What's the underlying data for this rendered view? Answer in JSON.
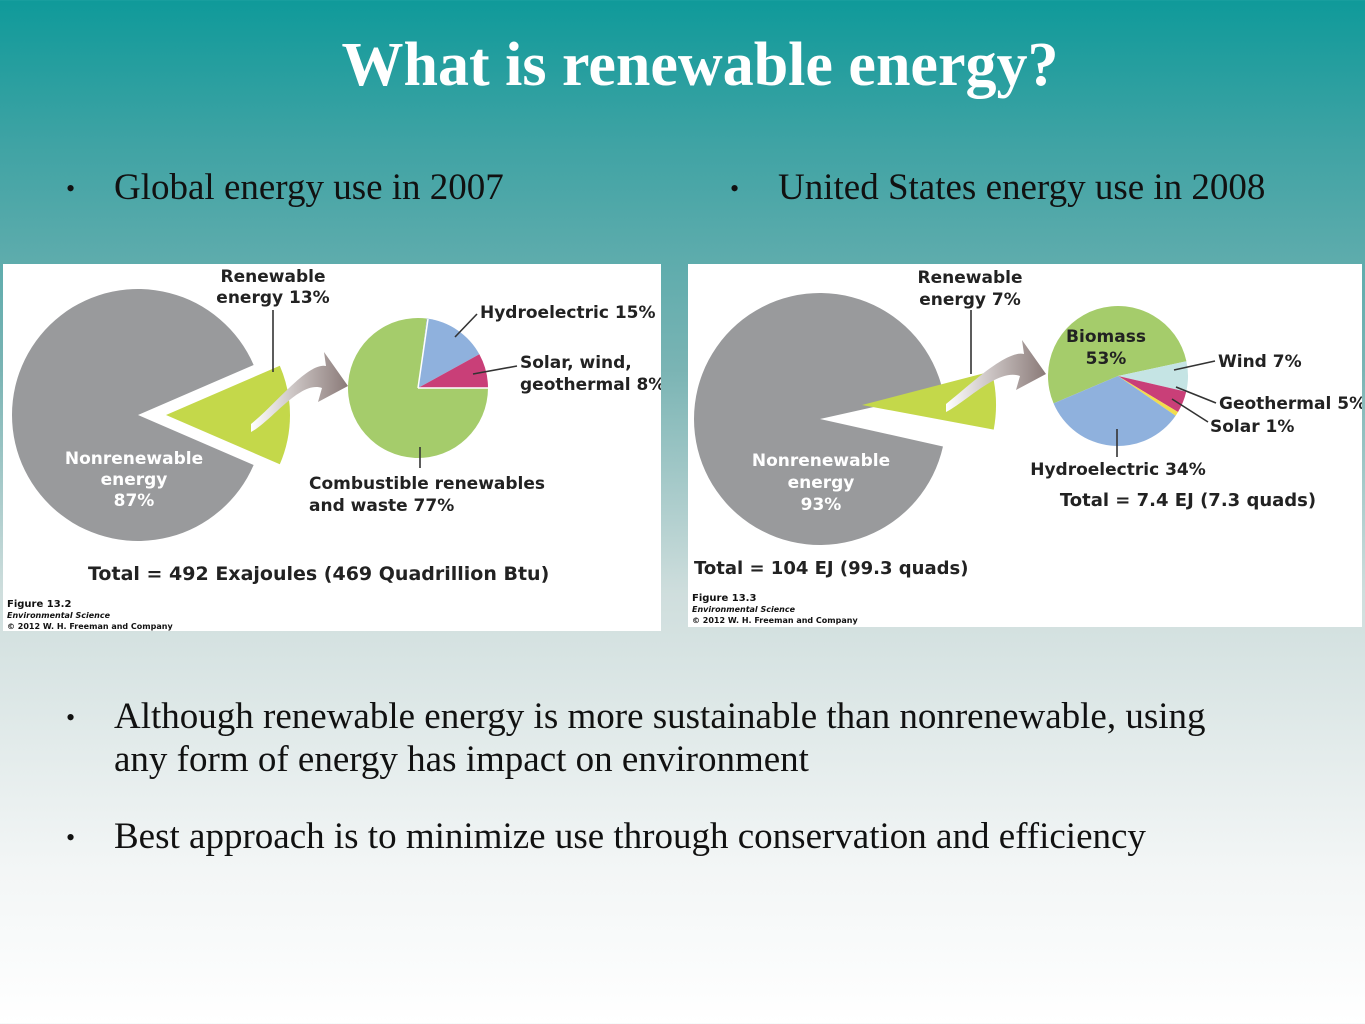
{
  "slide": {
    "title": "What is renewable energy?",
    "bullets_top": [
      "Global energy use in 2007",
      "United States energy use in 2008"
    ],
    "bullets_bottom": [
      "Although renewable energy is more sustainable than nonrenewable, using",
      "any form of energy has impact on environment",
      "Best approach is to minimize use through conservation and efficiency"
    ]
  },
  "colors": {
    "nonrenewable": "#999a9c",
    "renewable": "#c4d84a",
    "combustible": "#a5cc6b",
    "hydro": "#8fb1dd",
    "solar_wind_geo": "#c93f78",
    "wind": "#c5e4e4",
    "solar": "#f2dd4c"
  },
  "chart_data": [
    {
      "type": "pie",
      "figure": "Figure 13.2",
      "book": "Environmental Science",
      "copyright": "© 2012 W. H. Freeman and Company",
      "total": "Total = 492 Exajoules (469 Quadrillion Btu)",
      "main": {
        "slices": [
          {
            "label": "Nonrenewable energy 87%",
            "lines": [
              "Nonrenewable",
              "energy",
              "87%"
            ],
            "value": 87
          },
          {
            "label": "Renewable energy 13%",
            "lines": [
              "Renewable",
              "energy 13%"
            ],
            "value": 13
          }
        ]
      },
      "detail": {
        "slices": [
          {
            "label": "Hydroelectric 15%",
            "lines": [
              "Hydroelectric 15%"
            ],
            "value": 15
          },
          {
            "label": "Solar, wind, geothermal 8%",
            "lines": [
              "Solar, wind,",
              "geothermal 8%"
            ],
            "value": 8
          },
          {
            "label": "Combustible renewables and waste 77%",
            "lines": [
              "Combustible renewables",
              "and waste 77%"
            ],
            "value": 77
          }
        ]
      }
    },
    {
      "type": "pie",
      "figure": "Figure 13.3",
      "book": "Environmental Science",
      "copyright": "© 2012 W. H. Freeman and Company",
      "total": "Total = 104 EJ (99.3 quads)",
      "detail_total": "Total = 7.4 EJ (7.3 quads)",
      "main": {
        "slices": [
          {
            "label": "Nonrenewable energy 93%",
            "lines": [
              "Nonrenewable",
              "energy",
              "93%"
            ],
            "value": 93
          },
          {
            "label": "Renewable energy 7%",
            "lines": [
              "Renewable",
              "energy 7%"
            ],
            "value": 7
          }
        ]
      },
      "detail": {
        "slices": [
          {
            "label": "Biomass 53%",
            "lines": [
              "Biomass",
              "53%"
            ],
            "value": 53
          },
          {
            "label": "Wind 7%",
            "lines": [
              "Wind 7%"
            ],
            "value": 7
          },
          {
            "label": "Geothermal 5%",
            "lines": [
              "Geothermal 5%"
            ],
            "value": 5
          },
          {
            "label": "Solar 1%",
            "lines": [
              "Solar 1%"
            ],
            "value": 1
          },
          {
            "label": "Hydroelectric 34%",
            "lines": [
              "Hydroelectric 34%"
            ],
            "value": 34
          }
        ]
      }
    }
  ]
}
